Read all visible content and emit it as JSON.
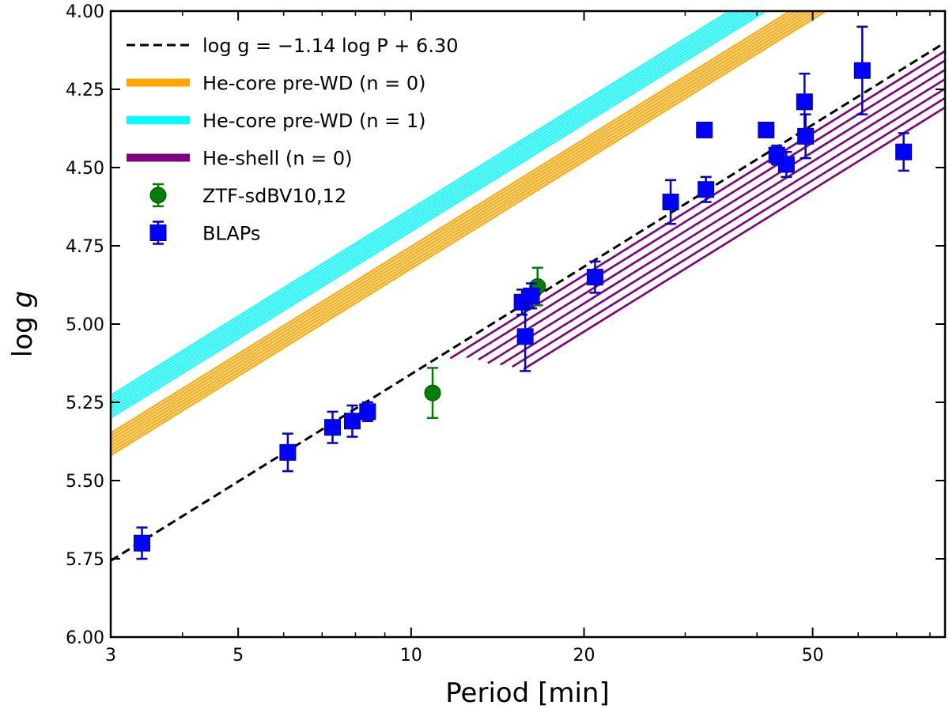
{
  "chart_data": {
    "type": "scatter",
    "xscale": "log",
    "xlim": [
      3,
      85
    ],
    "ylim": [
      6.0,
      4.0
    ],
    "y_inverted": true,
    "xlabel": "Period [min]",
    "ylabel": "log g",
    "x_major_ticks": [
      3,
      5,
      10,
      20,
      50
    ],
    "x_tick_labels": [
      "3",
      "5",
      "10",
      "20",
      "50"
    ],
    "x_minor_ticks": [
      4,
      6,
      7,
      8,
      9,
      30,
      40,
      60,
      70,
      80
    ],
    "y_ticks": [
      4.0,
      4.25,
      4.5,
      4.75,
      5.0,
      5.25,
      5.5,
      5.75,
      6.0
    ],
    "y_tick_labels": [
      "4.00",
      "4.25",
      "4.50",
      "4.75",
      "5.00",
      "5.25",
      "5.50",
      "5.75",
      "6.00"
    ],
    "legend_position": "top-left",
    "colors": {
      "fit": "#000000",
      "he_core_n0": "#FFA500",
      "he_core_n1": "#00FFFF",
      "he_shell_n0": "#800080",
      "ztf": "#008000",
      "blaps": "#0000FF",
      "blaps_errorbar": "#0000CC"
    },
    "legend": [
      {
        "key": "fit",
        "text": "log g = −1.14 log P + 6.30"
      },
      {
        "key": "he_core_n0",
        "text": "He-core pre-WD (n = 0)"
      },
      {
        "key": "he_core_n1",
        "text": "He-core pre-WD (n = 1)"
      },
      {
        "key": "he_shell_n0",
        "text": "He-shell (n = 0)"
      },
      {
        "key": "ztf",
        "text": "ZTF-sdBV10,12"
      },
      {
        "key": "blaps",
        "text": "BLAPs"
      }
    ],
    "fit_line": {
      "slope": -1.14,
      "intercept": 6.3,
      "x_range": [
        3,
        85
      ]
    },
    "track_bands": [
      {
        "name": "He-core pre-WD (n=0)",
        "color_key": "he_core_n0",
        "slope": -1.14,
        "offsets": [
          5.8927,
          5.9027,
          5.9127,
          5.9227,
          5.9327,
          5.9427,
          5.9527,
          5.9627
        ],
        "x_range": [
          3,
          85
        ]
      },
      {
        "name": "He-core pre-WD (n=1)",
        "color_key": "he_core_n1",
        "slope": -1.14,
        "offsets": [
          5.7727,
          5.7827,
          5.7927,
          5.8027,
          5.8127,
          5.8227,
          5.8327,
          5.8427
        ],
        "x_range": [
          3,
          85
        ]
      }
    ],
    "he_shell_tracks": [
      {
        "x_start": 11.7,
        "x_end": 85,
        "offset": 0.0
      },
      {
        "x_start": 12.5,
        "x_end": 85,
        "offset": 0.03
      },
      {
        "x_start": 13.1,
        "x_end": 85,
        "offset": 0.06
      },
      {
        "x_start": 13.6,
        "x_end": 85,
        "offset": 0.09
      },
      {
        "x_start": 14.3,
        "x_end": 85,
        "offset": 0.12
      },
      {
        "x_start": 15.0,
        "x_end": 85,
        "offset": 0.15
      },
      {
        "x_start": 15.7,
        "x_end": 85,
        "offset": 0.18
      }
    ],
    "he_shell_params": {
      "slope": -1.14,
      "base_intercept": 6.3273
    },
    "series": [
      {
        "name": "ZTF-sdBV10,12",
        "marker": "circle",
        "color_key": "ztf",
        "points": [
          {
            "x": 10.9,
            "y": 5.22,
            "err": 0.08
          },
          {
            "x": 16.6,
            "y": 4.88,
            "err": 0.06
          }
        ]
      },
      {
        "name": "BLAPs",
        "marker": "square",
        "color_key": "blaps",
        "points": [
          {
            "x": 3.4,
            "y": 5.7,
            "err": 0.05
          },
          {
            "x": 6.1,
            "y": 5.41,
            "err": 0.06
          },
          {
            "x": 7.3,
            "y": 5.33,
            "err": 0.05
          },
          {
            "x": 7.9,
            "y": 5.31,
            "err": 0.05
          },
          {
            "x": 8.4,
            "y": 5.28,
            "err": 0.03
          },
          {
            "x": 15.6,
            "y": 4.93,
            "err": 0.04
          },
          {
            "x": 16.2,
            "y": 4.91,
            "err": 0.04
          },
          {
            "x": 15.8,
            "y": 5.04,
            "err": 0.11
          },
          {
            "x": 20.9,
            "y": 4.85,
            "err": 0.05
          },
          {
            "x": 28.3,
            "y": 4.61,
            "err": 0.07
          },
          {
            "x": 32.4,
            "y": 4.38,
            "err": 0.0
          },
          {
            "x": 32.6,
            "y": 4.57,
            "err": 0.04
          },
          {
            "x": 41.5,
            "y": 4.38,
            "err": 0.0
          },
          {
            "x": 43.3,
            "y": 4.46,
            "err": 0.03
          },
          {
            "x": 45.0,
            "y": 4.49,
            "err": 0.04
          },
          {
            "x": 48.4,
            "y": 4.29,
            "err": 0.09
          },
          {
            "x": 48.6,
            "y": 4.4,
            "err": 0.07
          },
          {
            "x": 61.0,
            "y": 4.19,
            "err": 0.14
          },
          {
            "x": 72.0,
            "y": 4.45,
            "err": 0.06
          }
        ]
      }
    ]
  }
}
